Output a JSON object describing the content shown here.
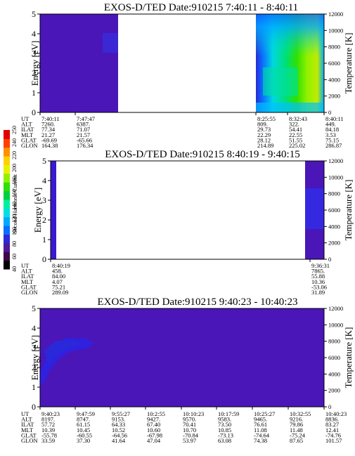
{
  "colors": {
    "background": "#ffffff",
    "low_intensity": "#4a16b8",
    "mid_intensity": "#2a2ad8",
    "colorbar": [
      "#000000",
      "#3b0a45",
      "#50189a",
      "#2a2ad8",
      "#0a6eff",
      "#00a8ff",
      "#00e0e0",
      "#00f0a0",
      "#00d040",
      "#30e000",
      "#90f000",
      "#e8f000",
      "#ffd000",
      "#ff9000",
      "#ff4000",
      "#e00000"
    ]
  },
  "colorbar": {
    "title": "Second Harmonic Current",
    "ticks": [
      "40",
      "60",
      "80",
      "100",
      "120",
      "140",
      "160",
      "180",
      "200",
      "220",
      "240",
      "250"
    ]
  },
  "chart_data": [
    {
      "type": "heatmap",
      "title": "EXOS-D/TED   Date:910215  7:40:11 - 8:40:11",
      "ylabel": "Energy [eV]",
      "y2label": "Temperature [K]",
      "ylim": [
        0,
        5
      ],
      "y2lim": [
        0,
        12000
      ],
      "yticks": [
        "0",
        "1",
        "2",
        "3",
        "4",
        "5"
      ],
      "y2ticks": [
        "0",
        "2000",
        "4000",
        "6000",
        "8000",
        "10000",
        "12000"
      ],
      "data_segments": [
        {
          "start": "7:40:11",
          "end": "7:55:00",
          "note_color": "low_intensity"
        },
        {
          "start": "8:25:55",
          "end": "8:40:11",
          "note_color": "mixed"
        }
      ],
      "ephemeris": {
        "rows": [
          "UT",
          "ALT",
          "ILAT",
          "MLT",
          "GLAT",
          "GLON"
        ],
        "columns": [
          {
            "UT": "7:40:11",
            "ALT": "7260.",
            "ILAT": "77.34",
            "MLT": "21.27",
            "GLAT": "-69.69",
            "GLON": "164.38"
          },
          {
            "UT": "7:47:47",
            "ALT": "6387.",
            "ILAT": "71.07",
            "MLT": "21.57",
            "GLAT": "-65.66",
            "GLON": "176.34"
          },
          {
            "UT": "8:25:55",
            "ALT": "809.",
            "ILAT": "29.73",
            "MLT": "22.29",
            "GLAT": "28.12",
            "GLON": "214.89"
          },
          {
            "UT": "8:32:43",
            "ALT": "322.",
            "ILAT": "54.41",
            "MLT": "22.55",
            "GLAT": "51.55",
            "GLON": "225.02"
          },
          {
            "UT": "8:40:11",
            "ALT": "449.",
            "ILAT": "84.18",
            "MLT": "3.53",
            "GLAT": "75.15",
            "GLON": "286.87"
          }
        ]
      }
    },
    {
      "type": "heatmap",
      "title": "EXOS-D/TED   Date:910215  8:40:19 - 9:40:15",
      "ylabel": "Energy [eV]",
      "y2label": "Temperature [K]",
      "ylim": [
        0,
        5
      ],
      "y2lim": [
        0,
        12000
      ],
      "yticks": [
        "0",
        "1",
        "2",
        "3",
        "4",
        "5"
      ],
      "y2ticks": [
        "0",
        "2000",
        "4000",
        "6000",
        "8000",
        "10000",
        "12000"
      ],
      "ephemeris": {
        "rows": [
          "UT",
          "ALT",
          "ILAT",
          "MLT",
          "GLAT",
          "GLON"
        ],
        "columns": [
          {
            "UT": "8:40:19",
            "ALT": "458.",
            "ILAT": "84.00",
            "MLT": "4.07",
            "GLAT": "75.21",
            "GLON": "289.09"
          },
          {
            "UT": "9:36:31",
            "ALT": "7865.",
            "ILAT": "55.88",
            "MLT": "10.36",
            "GLAT": "-53.06",
            "GLON": "31.89"
          }
        ]
      }
    },
    {
      "type": "heatmap",
      "title": "EXOS-D/TED   Date:910215  9:40:23 - 10:40:23",
      "ylabel": "Energy [eV]",
      "y2label": "Temperature [K]",
      "ylim": [
        0,
        5
      ],
      "y2lim": [
        0,
        12000
      ],
      "yticks": [
        "0",
        "1",
        "2",
        "3",
        "4",
        "5"
      ],
      "y2ticks": [
        "0",
        "2000",
        "4000",
        "6000",
        "8000",
        "10000",
        "12000"
      ],
      "ephemeris": {
        "rows": [
          "UT",
          "ALT",
          "ILAT",
          "MLT",
          "GLAT",
          "GLON"
        ],
        "columns": [
          {
            "UT": "9:40:23",
            "ALT": "8197.",
            "ILAT": "57.72",
            "MLT": "10.39",
            "GLAT": "-55.78",
            "GLON": "33.59"
          },
          {
            "UT": "9:47:59",
            "ALT": "8747.",
            "ILAT": "61.15",
            "MLT": "10.45",
            "GLAT": "-60.55",
            "GLON": "37.30"
          },
          {
            "UT": "9:55:27",
            "ALT": "9153.",
            "ILAT": "64.33",
            "MLT": "10.52",
            "GLAT": "-64.56",
            "GLON": "41.64"
          },
          {
            "UT": "10:2:55",
            "ALT": "9427.",
            "ILAT": "67.40",
            "MLT": "10.60",
            "GLAT": "-67.98",
            "GLON": "47.04"
          },
          {
            "UT": "10:10:23",
            "ALT": "9570.",
            "ILAT": "70.41",
            "MLT": "10.70",
            "GLAT": "-70.84",
            "GLON": "53.97"
          },
          {
            "UT": "10:17:59",
            "ALT": "9583.",
            "ILAT": "73.50",
            "MLT": "10.85",
            "GLAT": "-73.13",
            "GLON": "63.08"
          },
          {
            "UT": "10:25:27",
            "ALT": "9465.",
            "ILAT": "76.61",
            "MLT": "11.08",
            "GLAT": "-74.64",
            "GLON": "74.38"
          },
          {
            "UT": "10:32:55",
            "ALT": "9216.",
            "ILAT": "79.86",
            "MLT": "11.48",
            "GLAT": "-75.24",
            "GLON": "87.65"
          },
          {
            "UT": "10:40:23",
            "ALT": "8836.",
            "ILAT": "83.27",
            "MLT": "12.41",
            "GLAT": "-74.76",
            "GLON": "101.57"
          }
        ]
      }
    }
  ]
}
